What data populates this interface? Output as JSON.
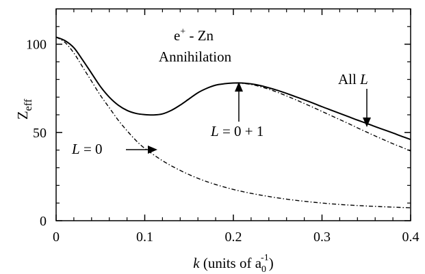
{
  "chart_data": {
    "type": "line",
    "title": "",
    "xlabel": {
      "var": "k",
      "rest": " (units of a",
      "sub": "0",
      "sup": "-1",
      "close": ")"
    },
    "ylabel": {
      "main": "Z",
      "sub": "eff"
    },
    "xlim": [
      0,
      0.4
    ],
    "ylim": [
      0,
      120
    ],
    "xticks": [
      0,
      0.1,
      0.2,
      0.3,
      0.4
    ],
    "xtick_labels": [
      "0",
      "0.1",
      "0.2",
      "0.3",
      "0.4"
    ],
    "yticks": [
      0,
      50,
      100
    ],
    "ytick_labels": [
      "0",
      "50",
      "100"
    ],
    "grid": false,
    "annotation_title": {
      "line1_main": "e",
      "line1_sup": "+",
      "line1_rest": " - Zn",
      "line2": "Annihilation"
    },
    "labels": {
      "all_l": {
        "pre": "All ",
        "var": "L"
      },
      "l01": {
        "var": "L",
        "rest": " = 0 + 1"
      },
      "l0": {
        "var": "L",
        "rest": " = 0"
      }
    },
    "series": [
      {
        "style": "solid",
        "x": [
          0,
          0.01,
          0.02,
          0.03,
          0.04,
          0.05,
          0.06,
          0.07,
          0.08,
          0.09,
          0.1,
          0.11,
          0.12,
          0.13,
          0.14,
          0.15,
          0.16,
          0.17,
          0.18,
          0.19,
          0.2,
          0.21,
          0.22,
          0.23,
          0.24,
          0.25,
          0.26,
          0.27,
          0.28,
          0.29,
          0.3,
          0.31,
          0.32,
          0.33,
          0.34,
          0.35,
          0.36,
          0.37,
          0.38,
          0.39,
          0.4
        ],
        "y": [
          104,
          102,
          98,
          91,
          83.5,
          76,
          70,
          65.5,
          62.5,
          60.8,
          60.1,
          59.9,
          60.5,
          62.5,
          65.5,
          69,
          72.5,
          75,
          76.8,
          77.6,
          78,
          78,
          77.5,
          76.6,
          75.3,
          73.8,
          72.1,
          70.3,
          68.5,
          66.6,
          64.6,
          62.7,
          60.8,
          58.9,
          57,
          55.2,
          53.3,
          51.5,
          49.7,
          47.8,
          46
        ]
      },
      {
        "style": "dashdot",
        "x": [
          0,
          0.01,
          0.02,
          0.03,
          0.04,
          0.05,
          0.06,
          0.07,
          0.08,
          0.09,
          0.1,
          0.11,
          0.12,
          0.13,
          0.14,
          0.15,
          0.16,
          0.17,
          0.18,
          0.19,
          0.2,
          0.21,
          0.22,
          0.23,
          0.24,
          0.25,
          0.26,
          0.27,
          0.28,
          0.29,
          0.3,
          0.31,
          0.32,
          0.33,
          0.34,
          0.35,
          0.36,
          0.37,
          0.38,
          0.39,
          0.4
        ],
        "y": [
          104,
          102,
          98,
          91,
          83.5,
          76,
          70,
          65.5,
          62.5,
          60.8,
          60.1,
          59.9,
          60.5,
          62.5,
          65.5,
          69,
          72.5,
          75,
          76.8,
          77.6,
          78,
          77.8,
          77.2,
          76,
          74.5,
          72.7,
          70.7,
          68.6,
          66.4,
          64.2,
          61.9,
          59.6,
          57.3,
          55,
          52.6,
          50.3,
          48,
          45.8,
          43.6,
          41.6,
          39.5
        ]
      },
      {
        "style": "dashdot",
        "x": [
          0,
          0.01,
          0.02,
          0.03,
          0.04,
          0.05,
          0.06,
          0.07,
          0.08,
          0.09,
          0.1,
          0.12,
          0.14,
          0.16,
          0.18,
          0.2,
          0.22,
          0.24,
          0.26,
          0.28,
          0.3,
          0.32,
          0.34,
          0.36,
          0.38,
          0.4
        ],
        "y": [
          104,
          101,
          95,
          87,
          79,
          71,
          64,
          57,
          51,
          45.5,
          41,
          34,
          28.5,
          24,
          20.5,
          17.7,
          15.5,
          13.7,
          12.2,
          11,
          10,
          9.2,
          8.6,
          8.1,
          7.7,
          7.3
        ]
      }
    ]
  }
}
